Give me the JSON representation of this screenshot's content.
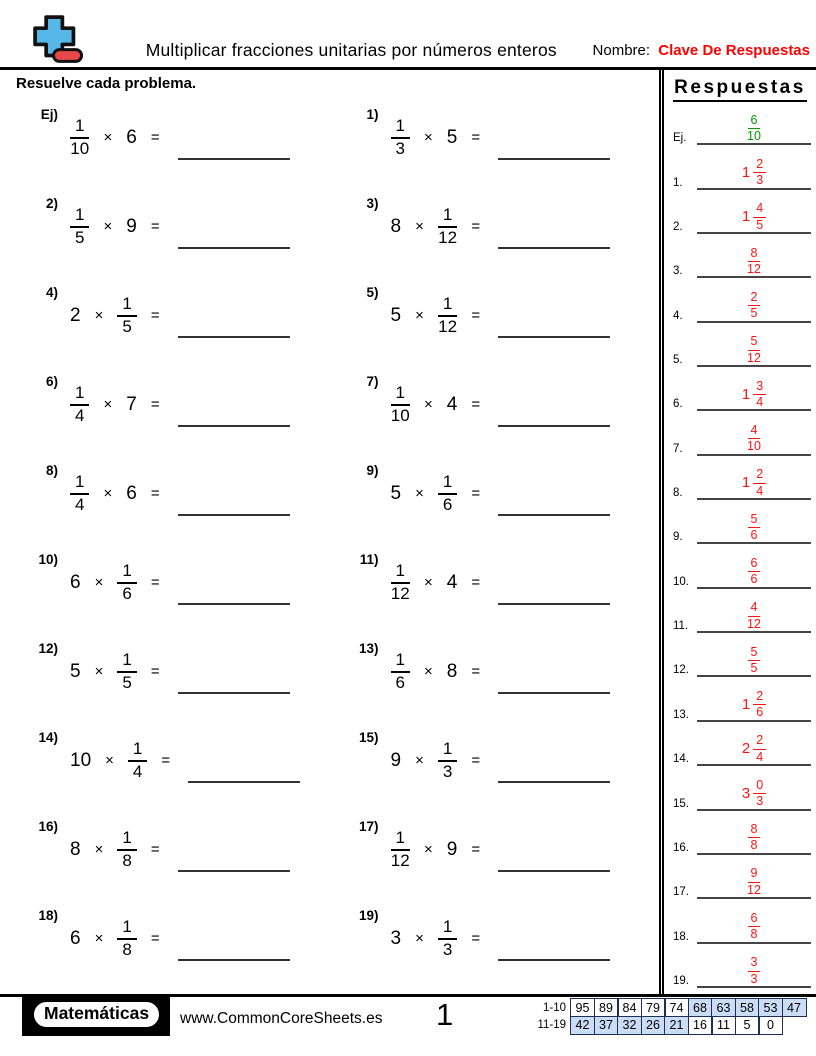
{
  "header": {
    "title": "Multiplicar fracciones unitarias por números enteros",
    "name_label": "Nombre:",
    "name_value": "Clave De Respuestas"
  },
  "instructions": "Resuelve cada problema.",
  "answers_title": "Respuestas",
  "colors": {
    "accent_red": "#ff0000",
    "answer_red": "#ff1414",
    "example_green": "#009900",
    "table_highlight": "#cbdcf5",
    "logo_blue": "#56b7e8",
    "logo_red": "#e94848"
  },
  "problems": [
    {
      "label": "Ej)",
      "seq": [
        {
          "f": [
            "1",
            "10"
          ]
        },
        {
          "t": "×"
        },
        {
          "t": "6"
        },
        {
          "t": "="
        }
      ]
    },
    {
      "label": "1)",
      "seq": [
        {
          "f": [
            "1",
            "3"
          ]
        },
        {
          "t": "×"
        },
        {
          "t": "5"
        },
        {
          "t": "="
        }
      ]
    },
    {
      "label": "2)",
      "seq": [
        {
          "f": [
            "1",
            "5"
          ]
        },
        {
          "t": "×"
        },
        {
          "t": "9"
        },
        {
          "t": "="
        }
      ]
    },
    {
      "label": "3)",
      "seq": [
        {
          "t": "8"
        },
        {
          "t": "×"
        },
        {
          "f": [
            "1",
            "12"
          ]
        },
        {
          "t": "="
        }
      ]
    },
    {
      "label": "4)",
      "seq": [
        {
          "t": "2"
        },
        {
          "t": "×"
        },
        {
          "f": [
            "1",
            "5"
          ]
        },
        {
          "t": "="
        }
      ]
    },
    {
      "label": "5)",
      "seq": [
        {
          "t": "5"
        },
        {
          "t": "×"
        },
        {
          "f": [
            "1",
            "12"
          ]
        },
        {
          "t": "="
        }
      ]
    },
    {
      "label": "6)",
      "seq": [
        {
          "f": [
            "1",
            "4"
          ]
        },
        {
          "t": "×"
        },
        {
          "t": "7"
        },
        {
          "t": "="
        }
      ]
    },
    {
      "label": "7)",
      "seq": [
        {
          "f": [
            "1",
            "10"
          ]
        },
        {
          "t": "×"
        },
        {
          "t": "4"
        },
        {
          "t": "="
        }
      ]
    },
    {
      "label": "8)",
      "seq": [
        {
          "f": [
            "1",
            "4"
          ]
        },
        {
          "t": "×"
        },
        {
          "t": "6"
        },
        {
          "t": "="
        }
      ]
    },
    {
      "label": "9)",
      "seq": [
        {
          "t": "5"
        },
        {
          "t": "×"
        },
        {
          "f": [
            "1",
            "6"
          ]
        },
        {
          "t": "="
        }
      ]
    },
    {
      "label": "10)",
      "seq": [
        {
          "t": "6"
        },
        {
          "t": "×"
        },
        {
          "f": [
            "1",
            "6"
          ]
        },
        {
          "t": "="
        }
      ]
    },
    {
      "label": "11)",
      "seq": [
        {
          "f": [
            "1",
            "12"
          ]
        },
        {
          "t": "×"
        },
        {
          "t": "4"
        },
        {
          "t": "="
        }
      ]
    },
    {
      "label": "12)",
      "seq": [
        {
          "t": "5"
        },
        {
          "t": "×"
        },
        {
          "f": [
            "1",
            "5"
          ]
        },
        {
          "t": "="
        }
      ]
    },
    {
      "label": "13)",
      "seq": [
        {
          "f": [
            "1",
            "6"
          ]
        },
        {
          "t": "×"
        },
        {
          "t": "8"
        },
        {
          "t": "="
        }
      ]
    },
    {
      "label": "14)",
      "seq": [
        {
          "t": "10"
        },
        {
          "t": "×"
        },
        {
          "f": [
            "1",
            "4"
          ]
        },
        {
          "t": "="
        }
      ]
    },
    {
      "label": "15)",
      "seq": [
        {
          "t": "9"
        },
        {
          "t": "×"
        },
        {
          "f": [
            "1",
            "3"
          ]
        },
        {
          "t": "="
        }
      ]
    },
    {
      "label": "16)",
      "seq": [
        {
          "t": "8"
        },
        {
          "t": "×"
        },
        {
          "f": [
            "1",
            "8"
          ]
        },
        {
          "t": "="
        }
      ]
    },
    {
      "label": "17)",
      "seq": [
        {
          "f": [
            "1",
            "12"
          ]
        },
        {
          "t": "×"
        },
        {
          "t": "9"
        },
        {
          "t": "="
        }
      ]
    },
    {
      "label": "18)",
      "seq": [
        {
          "t": "6"
        },
        {
          "t": "×"
        },
        {
          "f": [
            "1",
            "8"
          ]
        },
        {
          "t": "="
        }
      ]
    },
    {
      "label": "19)",
      "seq": [
        {
          "t": "3"
        },
        {
          "t": "×"
        },
        {
          "f": [
            "1",
            "3"
          ]
        },
        {
          "t": "="
        }
      ]
    }
  ],
  "answers": [
    {
      "label": "Ej.",
      "whole": "",
      "num": "6",
      "den": "10",
      "is_example": true
    },
    {
      "label": "1.",
      "whole": "1",
      "num": "2",
      "den": "3"
    },
    {
      "label": "2.",
      "whole": "1",
      "num": "4",
      "den": "5"
    },
    {
      "label": "3.",
      "whole": "",
      "num": "8",
      "den": "12"
    },
    {
      "label": "4.",
      "whole": "",
      "num": "2",
      "den": "5"
    },
    {
      "label": "5.",
      "whole": "",
      "num": "5",
      "den": "12"
    },
    {
      "label": "6.",
      "whole": "1",
      "num": "3",
      "den": "4"
    },
    {
      "label": "7.",
      "whole": "",
      "num": "4",
      "den": "10"
    },
    {
      "label": "8.",
      "whole": "1",
      "num": "2",
      "den": "4"
    },
    {
      "label": "9.",
      "whole": "",
      "num": "5",
      "den": "6"
    },
    {
      "label": "10.",
      "whole": "",
      "num": "6",
      "den": "6"
    },
    {
      "label": "11.",
      "whole": "",
      "num": "4",
      "den": "12"
    },
    {
      "label": "12.",
      "whole": "",
      "num": "5",
      "den": "5"
    },
    {
      "label": "13.",
      "whole": "1",
      "num": "2",
      "den": "6"
    },
    {
      "label": "14.",
      "whole": "2",
      "num": "2",
      "den": "4"
    },
    {
      "label": "15.",
      "whole": "3",
      "num": "0",
      "den": "3"
    },
    {
      "label": "16.",
      "whole": "",
      "num": "8",
      "den": "8"
    },
    {
      "label": "17.",
      "whole": "",
      "num": "9",
      "den": "12"
    },
    {
      "label": "18.",
      "whole": "",
      "num": "6",
      "den": "8"
    },
    {
      "label": "19.",
      "whole": "",
      "num": "3",
      "den": "3"
    }
  ],
  "footer": {
    "brand": "Matemáticas",
    "site": "www.CommonCoreSheets.es",
    "page_number": "1",
    "score_table": {
      "rows": [
        {
          "label": "1-10",
          "cells": [
            {
              "v": "95",
              "hl": false
            },
            {
              "v": "89",
              "hl": false
            },
            {
              "v": "84",
              "hl": false
            },
            {
              "v": "79",
              "hl": false
            },
            {
              "v": "74",
              "hl": false
            },
            {
              "v": "68",
              "hl": true
            },
            {
              "v": "63",
              "hl": true
            },
            {
              "v": "58",
              "hl": true
            },
            {
              "v": "53",
              "hl": true
            },
            {
              "v": "47",
              "hl": true
            }
          ]
        },
        {
          "label": "11-19",
          "cells": [
            {
              "v": "42",
              "hl": true
            },
            {
              "v": "37",
              "hl": true
            },
            {
              "v": "32",
              "hl": true
            },
            {
              "v": "26",
              "hl": true
            },
            {
              "v": "21",
              "hl": true
            },
            {
              "v": "16",
              "hl": false
            },
            {
              "v": "11",
              "hl": false
            },
            {
              "v": "5",
              "hl": false
            },
            {
              "v": "0",
              "hl": false
            }
          ]
        }
      ]
    }
  }
}
